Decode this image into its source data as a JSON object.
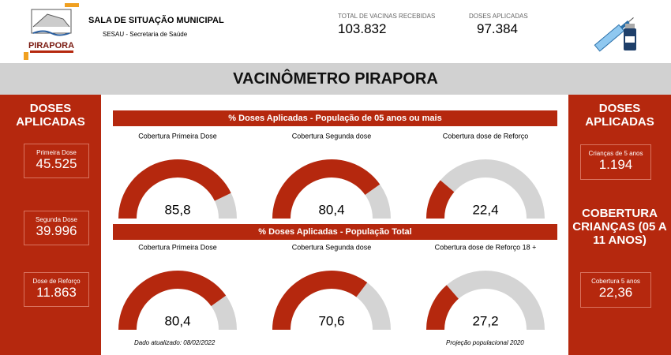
{
  "header": {
    "title": "SALA DE SITUAÇÃO MUNICIPAL",
    "subtitle": "SESAU - Secretaria de Saúde",
    "logo_text": "PIRAPORA",
    "kpis": [
      {
        "label": "TOTAL DE VACINAS RECEBIDAS",
        "value": "103.832"
      },
      {
        "label": "DOSES APLICADAS",
        "value": "97.384"
      }
    ]
  },
  "banner": "VACINÔMETRO PIRAPORA",
  "left_panel": {
    "title": "DOSES APLICADAS",
    "cards": [
      {
        "label": "Primeira Dose",
        "value": "45.525"
      },
      {
        "label": "Segunda Dose",
        "value": "39.996"
      },
      {
        "label": "Dose de Reforço",
        "value": "11.863"
      }
    ]
  },
  "right_panel": {
    "title": "DOSES APLICADAS",
    "cards": [
      {
        "label": "Crianças de 5 anos",
        "value": "1.194"
      }
    ],
    "coverage_title": "COBERTURA CRIANÇAS (05 A 11 ANOS)",
    "coverage_cards": [
      {
        "label": "Cobertura 5 anos",
        "value": "22,36"
      }
    ]
  },
  "sections": [
    "% Doses Aplicadas - População de 05 anos ou mais",
    "% Doses Aplicadas - População Total"
  ],
  "chart_data": [
    {
      "type": "gauge",
      "title": "Cobertura Primeira Dose",
      "values": [
        85.8
      ],
      "value_labels": [
        "85,8"
      ],
      "ylim": [
        0,
        100
      ],
      "color": "#b5280e",
      "track_color": "#d4d4d4"
    },
    {
      "type": "gauge",
      "title": "Cobertura Segunda dose",
      "values": [
        80.4
      ],
      "value_labels": [
        "80,4"
      ],
      "ylim": [
        0,
        100
      ],
      "color": "#b5280e",
      "track_color": "#d4d4d4"
    },
    {
      "type": "gauge",
      "title": "Cobertura dose de Reforço",
      "values": [
        22.4
      ],
      "value_labels": [
        "22,4"
      ],
      "ylim": [
        0,
        100
      ],
      "color": "#b5280e",
      "track_color": "#d4d4d4"
    },
    {
      "type": "gauge",
      "title": "Cobertura Primeira Dose",
      "values": [
        80.4
      ],
      "value_labels": [
        "80,4"
      ],
      "ylim": [
        0,
        100
      ],
      "color": "#b5280e",
      "track_color": "#d4d4d4"
    },
    {
      "type": "gauge",
      "title": "Cobertura Segunda dose",
      "values": [
        70.6
      ],
      "value_labels": [
        "70,6"
      ],
      "ylim": [
        0,
        100
      ],
      "color": "#b5280e",
      "track_color": "#d4d4d4"
    },
    {
      "type": "gauge",
      "title": "Cobertura dose de Reforço 18 +",
      "values": [
        27.2
      ],
      "value_labels": [
        "27,2"
      ],
      "ylim": [
        0,
        100
      ],
      "color": "#b5280e",
      "track_color": "#d4d4d4"
    }
  ],
  "footer": {
    "updated": "Dado atualizado: 08/02/2022",
    "source": "Projeção populacional 2020"
  }
}
